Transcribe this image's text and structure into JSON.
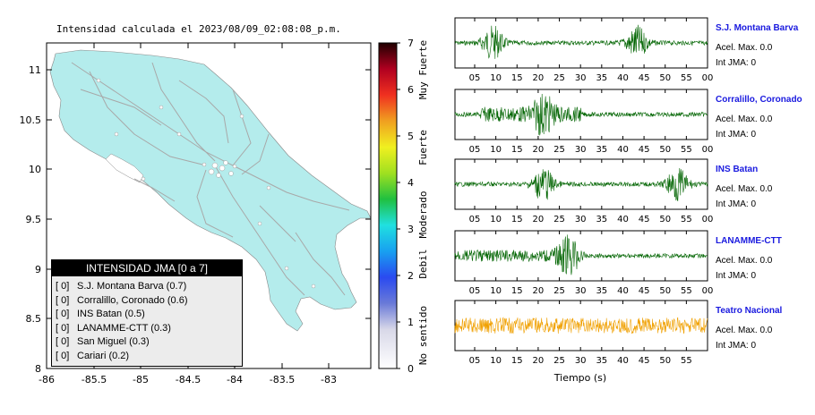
{
  "map": {
    "title": "Intensidad calculada el 2023/08/09_02:08:08_p.m.",
    "lat_ticks": [
      "11",
      "10.5",
      "10",
      "9.5",
      "9",
      "8.5",
      "8"
    ],
    "lon_ticks": [
      "-86",
      "-85.5",
      "-85",
      "-84.5",
      "-84",
      "-83.5",
      "-83"
    ],
    "land_color": "#b4ecec",
    "sea_color": "#ffffff"
  },
  "colorbar": {
    "ticks": [
      "7",
      "6",
      "5",
      "4",
      "3",
      "2",
      "1",
      "0"
    ],
    "labels": [
      "Muy Fuerte",
      "Fuerte",
      "Moderado",
      "Debil",
      "No sentido"
    ]
  },
  "legend": {
    "title": "INTENSIDAD JMA [0 a 7]",
    "rows": [
      {
        "level": "[ 0]",
        "station": "S.J. Montana Barva (0.7)"
      },
      {
        "level": "[ 0]",
        "station": "Corralillo, Coronado (0.6)"
      },
      {
        "level": "[ 0]",
        "station": "INS Batan (0.5)"
      },
      {
        "level": "[ 0]",
        "station": "LANAMME-CTT (0.3)"
      },
      {
        "level": "[ 0]",
        "station": "San Miguel (0.3)"
      },
      {
        "level": "[ 0]",
        "station": "Cariari (0.2)"
      }
    ]
  },
  "seismograms": {
    "time_label": "Tiempo (s)",
    "time_ticks": [
      "05",
      "10",
      "15",
      "20",
      "25",
      "30",
      "35",
      "40",
      "45",
      "50",
      "55",
      "00"
    ],
    "time_ticks_last": [
      "05",
      "10",
      "15",
      "20",
      "25",
      "30",
      "35",
      "40",
      "45",
      "50",
      "55"
    ],
    "stations": [
      {
        "name": "S.J. Montana Barva",
        "acel": "Acel. Max. 0.0",
        "jma": "Int JMA: 0",
        "color": "#006400"
      },
      {
        "name": "Corralillo, Coronado",
        "acel": "Acel. Max. 0.0",
        "jma": "Int JMA: 0",
        "color": "#006400"
      },
      {
        "name": "INS Batan",
        "acel": "Acel. Max. 0.0",
        "jma": "Int JMA: 0",
        "color": "#006400"
      },
      {
        "name": "LANAMME-CTT",
        "acel": "Acel. Max. 0.0",
        "jma": "Int JMA: 0",
        "color": "#006400"
      },
      {
        "name": "Teatro Nacional",
        "acel": "Acel. Max. 0.0",
        "jma": "Int JMA: 0",
        "color": "#f0a000"
      }
    ]
  }
}
